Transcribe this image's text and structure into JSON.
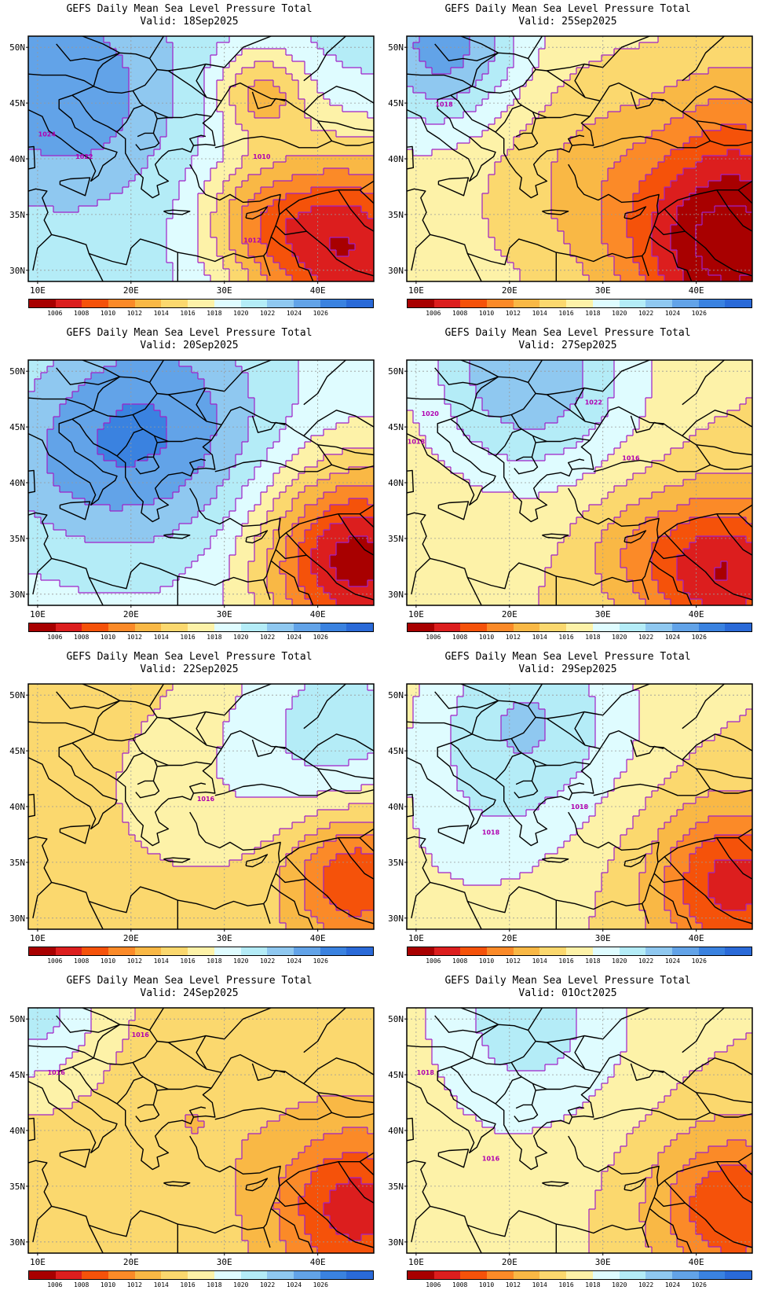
{
  "panels": [
    {
      "title": "GEFS Daily Mean Sea Level Pressure Total",
      "valid": "Valid: 18Sep2025",
      "contour_labels": [
        {
          "text": "1024"
        },
        {
          "text": "1022"
        },
        {
          "text": "1010"
        },
        {
          "text": "1012"
        }
      ]
    },
    {
      "title": "GEFS Daily Mean Sea Level Pressure Total",
      "valid": "Valid: 25Sep2025",
      "contour_labels": [
        {
          "text": "1018"
        }
      ]
    },
    {
      "title": "GEFS Daily Mean Sea Level Pressure Total",
      "valid": "Valid: 20Sep2025",
      "contour_labels": []
    },
    {
      "title": "GEFS Daily Mean Sea Level Pressure Total",
      "valid": "Valid: 27Sep2025",
      "contour_labels": [
        {
          "text": "1022"
        },
        {
          "text": "1020"
        },
        {
          "text": "1018"
        },
        {
          "text": "1016"
        }
      ]
    },
    {
      "title": "GEFS Daily Mean Sea Level Pressure Total",
      "valid": "Valid: 22Sep2025",
      "contour_labels": [
        {
          "text": "1016"
        }
      ]
    },
    {
      "title": "GEFS Daily Mean Sea Level Pressure Total",
      "valid": "Valid: 29Sep2025",
      "contour_labels": [
        {
          "text": "1018"
        },
        {
          "text": "1018"
        }
      ]
    },
    {
      "title": "GEFS Daily Mean Sea Level Pressure Total",
      "valid": "Valid: 24Sep2025",
      "contour_labels": [
        {
          "text": "1016"
        },
        {
          "text": "1016"
        }
      ]
    },
    {
      "title": "GEFS Daily Mean Sea Level Pressure Total",
      "valid": "Valid: 01Oct2025",
      "contour_labels": [
        {
          "text": "1018"
        },
        {
          "text": "1016"
        }
      ]
    }
  ],
  "lat_labels": [
    "50N",
    "45N",
    "40N",
    "35N",
    "30N"
  ],
  "lon_labels": [
    "10E",
    "20E",
    "30E",
    "40E"
  ],
  "colorbar_labels": [
    "1006",
    "1008",
    "1010",
    "1012",
    "1014",
    "1016",
    "1018",
    "1020",
    "1022",
    "1024",
    "1026"
  ],
  "colorbar_colors": [
    "#a80000",
    "#dc1e1e",
    "#f5520a",
    "#fb8a28",
    "#f9b845",
    "#fbd86e",
    "#fdf2a8",
    "#dffcff",
    "#b4ecf7",
    "#8fc8f0",
    "#62a3e8",
    "#3a82e0",
    "#2a6ad8"
  ],
  "contour_color": "#a020c8"
}
